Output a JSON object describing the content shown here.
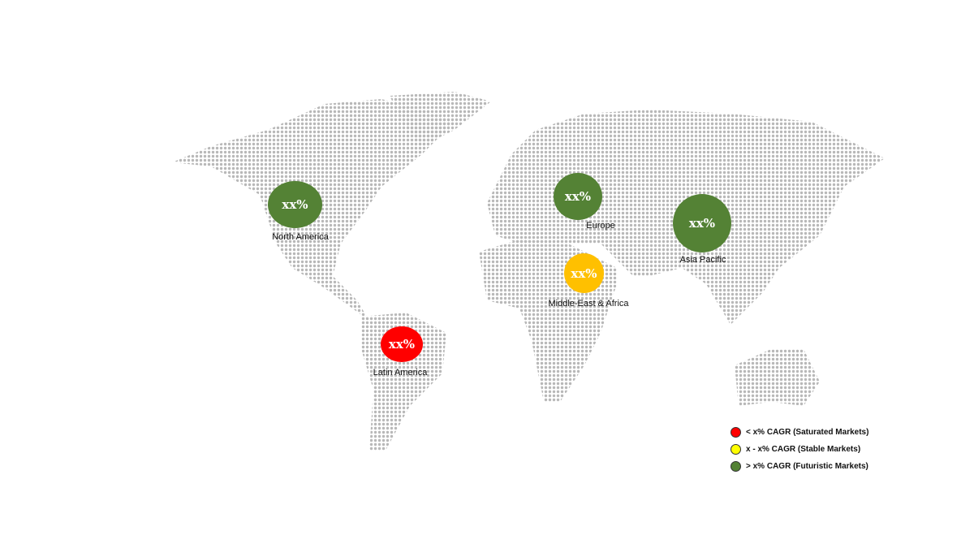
{
  "regions": [
    {
      "name": "North America",
      "value": "xx%",
      "status": "futuristic",
      "color": "#548235"
    },
    {
      "name": "Europe",
      "value": "xx%",
      "status": "futuristic",
      "color": "#548235"
    },
    {
      "name": "Asia Pacific",
      "value": "xx%",
      "status": "futuristic",
      "color": "#548235"
    },
    {
      "name": "Middle-East & Africa",
      "value": "xx%",
      "status": "stable",
      "color": "#ffc000"
    },
    {
      "name": "Latin America",
      "value": "xx%",
      "status": "saturated",
      "color": "#ff0000"
    }
  ],
  "legend": [
    {
      "label": "< x% CAGR (Saturated Markets)",
      "color": "#ff0000"
    },
    {
      "label": "x - x% CAGR (Stable Markets)",
      "color": "#ffff00"
    },
    {
      "label": "> x% CAGR (Futuristic Markets)",
      "color": "#548235"
    }
  ],
  "map_dot_color": "#b8b8b8"
}
